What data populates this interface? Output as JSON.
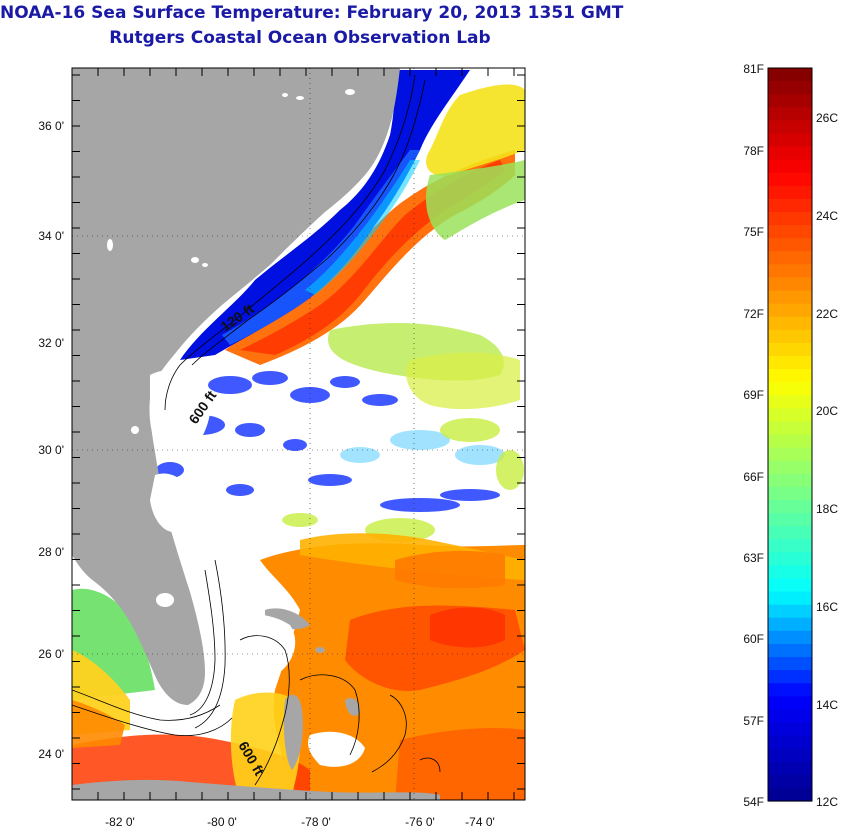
{
  "title": {
    "line1": "NOAA-16 Sea Surface Temperature:  February 20, 2013 1351 GMT",
    "line2": "Rutgers Coastal Ocean Observation Lab"
  },
  "map": {
    "lat_labels": [
      "36 0'",
      "34 0'",
      "32 0'",
      "30 0'",
      "28 0'",
      "26 0'",
      "24 0'"
    ],
    "lon_labels": [
      "-82 0'",
      "-80 0'",
      "-78 0'",
      "-76 0'",
      "-74 0'"
    ],
    "contour_labels": [
      "120 ft",
      "600 ft",
      "600 ft"
    ],
    "colors": {
      "land": "#a6a6a6",
      "cloud": "#ffffff",
      "coast": "#000000",
      "frame": "#000000"
    }
  },
  "colorbar": {
    "fahrenheit_labels": [
      "81F",
      "78F",
      "75F",
      "72F",
      "69F",
      "66F",
      "63F",
      "60F",
      "57F",
      "54F"
    ],
    "celsius_labels": [
      "26C",
      "24C",
      "22C",
      "20C",
      "18C",
      "16C",
      "14C",
      "12C"
    ],
    "colormap": [
      "#00008f",
      "#0000ff",
      "#00ffff",
      "#7fff7f",
      "#ffff00",
      "#ff7f00",
      "#ff0000",
      "#7f0000"
    ]
  }
}
